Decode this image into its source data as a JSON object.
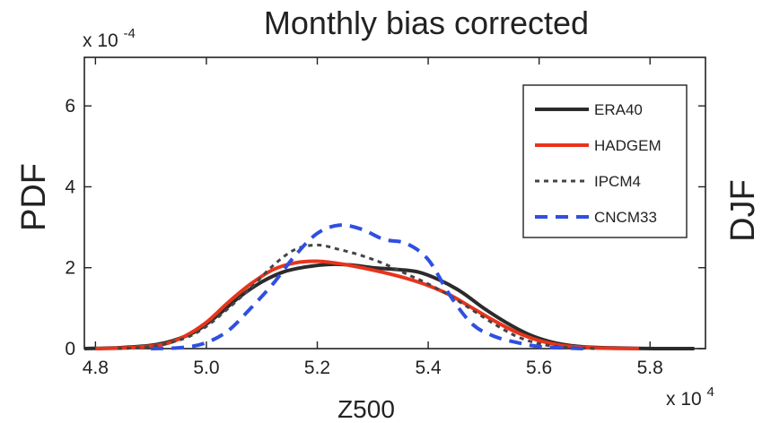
{
  "chart_data": {
    "type": "line",
    "title": "Monthly bias corrected",
    "xlabel": "Z500",
    "ylabel": "PDF",
    "right_label": "DJF",
    "x_exponent_label": {
      "base": "x 10",
      "exp": "4"
    },
    "y_exponent_label": {
      "base": "x 10",
      "exp": "-4"
    },
    "xlim": [
      4.78,
      5.9
    ],
    "ylim": [
      0,
      7.2
    ],
    "x_ticks": [
      "4.8",
      "5.0",
      "5.2",
      "5.4",
      "5.6",
      "5.8"
    ],
    "x_tick_values": [
      4.8,
      5.0,
      5.2,
      5.4,
      5.6,
      5.8
    ],
    "y_ticks": [
      "0",
      "2",
      "4",
      "6"
    ],
    "y_tick_values": [
      0,
      2,
      4,
      6
    ],
    "grid": false,
    "legend_position": "top-right",
    "series": [
      {
        "name": "ERA40",
        "color": "#2b2b2b",
        "style": "solid",
        "x": [
          4.78,
          4.84,
          4.9,
          4.94,
          4.98,
          5.02,
          5.06,
          5.1,
          5.14,
          5.18,
          5.22,
          5.26,
          5.3,
          5.34,
          5.38,
          5.42,
          5.46,
          5.5,
          5.54,
          5.58,
          5.62,
          5.66,
          5.7,
          5.76,
          5.82,
          5.88
        ],
        "y": [
          0.0,
          0.02,
          0.08,
          0.2,
          0.42,
          0.82,
          1.28,
          1.65,
          1.9,
          2.02,
          2.08,
          2.07,
          2.0,
          1.96,
          1.9,
          1.7,
          1.4,
          1.0,
          0.65,
          0.36,
          0.17,
          0.07,
          0.03,
          0.01,
          0.0,
          0.0
        ]
      },
      {
        "name": "HADGEM",
        "color": "#e8341c",
        "style": "solid",
        "x": [
          4.8,
          4.86,
          4.92,
          4.96,
          5.0,
          5.04,
          5.08,
          5.12,
          5.16,
          5.2,
          5.24,
          5.28,
          5.32,
          5.36,
          5.4,
          5.44,
          5.48,
          5.52,
          5.56,
          5.6,
          5.64,
          5.68,
          5.72,
          5.78
        ],
        "y": [
          0.0,
          0.02,
          0.1,
          0.3,
          0.65,
          1.15,
          1.6,
          1.95,
          2.12,
          2.16,
          2.1,
          2.0,
          1.88,
          1.74,
          1.56,
          1.32,
          1.0,
          0.68,
          0.4,
          0.2,
          0.08,
          0.03,
          0.01,
          0.0
        ]
      },
      {
        "name": "IPCM4",
        "color": "#444444",
        "style": "dotted",
        "x": [
          4.84,
          4.9,
          4.96,
          5.0,
          5.04,
          5.08,
          5.12,
          5.16,
          5.2,
          5.24,
          5.28,
          5.32,
          5.36,
          5.4,
          5.44,
          5.48,
          5.52,
          5.56,
          5.6,
          5.64,
          5.7
        ],
        "y": [
          0.0,
          0.05,
          0.25,
          0.55,
          1.0,
          1.5,
          2.05,
          2.45,
          2.56,
          2.45,
          2.3,
          2.1,
          1.85,
          1.6,
          1.3,
          0.95,
          0.6,
          0.3,
          0.12,
          0.04,
          0.0
        ]
      },
      {
        "name": "CNCM33",
        "color": "#2f4fe0",
        "style": "dashed",
        "x": [
          4.9,
          4.96,
          5.0,
          5.04,
          5.08,
          5.12,
          5.16,
          5.2,
          5.24,
          5.28,
          5.32,
          5.36,
          5.4,
          5.44,
          5.48,
          5.52,
          5.56,
          5.6,
          5.64,
          5.68
        ],
        "y": [
          0.0,
          0.03,
          0.15,
          0.45,
          1.0,
          1.6,
          2.3,
          2.85,
          3.05,
          2.95,
          2.7,
          2.6,
          2.2,
          1.3,
          0.6,
          0.3,
          0.15,
          0.05,
          0.02,
          0.0
        ]
      }
    ]
  }
}
